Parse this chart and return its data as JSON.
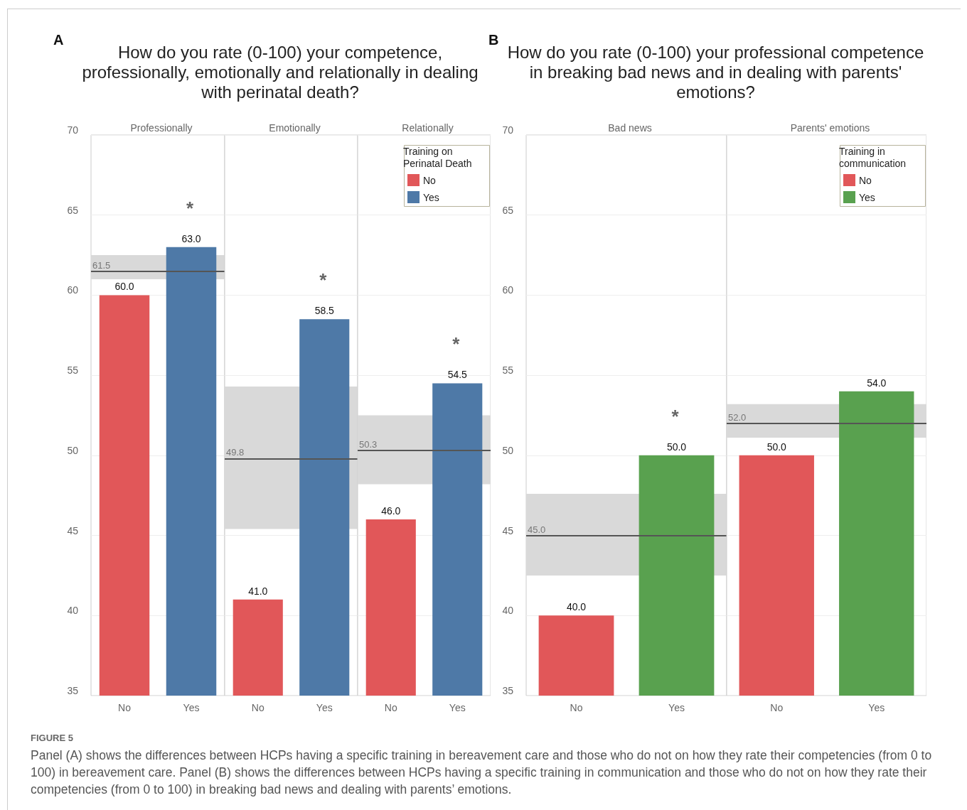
{
  "chart_data": [
    {
      "type": "bar",
      "title": "How do you rate (0-100) your competence, professionally, emotionally and relationally in dealing with perinatal death?",
      "subtitle": "Professionally",
      "categories": [
        "No",
        "Yes"
      ],
      "series": [
        {
          "color": "#e15759",
          "values": [
            60.0,
            null
          ],
          "value_labels": [
            "60.0",
            null
          ]
        },
        {
          "color": "#4e79a7",
          "values": [
            null,
            63.0
          ],
          "value_labels": [
            null,
            "63.0"
          ]
        }
      ],
      "ylim": [
        35,
        70
      ],
      "yticks": [
        35,
        40,
        45,
        50,
        55,
        60,
        65,
        70
      ],
      "grid": "y",
      "ref_lines": [
        {
          "axis": "y",
          "value": 61.5,
          "label": "61.5",
          "color": "#555555"
        }
      ],
      "bands": [
        {
          "axis": "y",
          "from": 61.0,
          "to": 62.5,
          "color": "#d9d9d9"
        }
      ],
      "annotations": [
        "A",
        "*"
      ]
    },
    {
      "type": "bar",
      "subtitle": "Emotionally",
      "categories": [
        "No",
        "Yes"
      ],
      "series": [
        {
          "color": "#e15759",
          "values": [
            41.0,
            null
          ],
          "value_labels": [
            "41.0",
            null
          ]
        },
        {
          "color": "#4e79a7",
          "values": [
            null,
            58.5
          ],
          "value_labels": [
            null,
            "58.5"
          ]
        }
      ],
      "ylim": [
        35,
        70
      ],
      "yticks": [
        35,
        40,
        45,
        50,
        55,
        60,
        65,
        70
      ],
      "grid": "y",
      "tick_labels": "x",
      "ref_lines": [
        {
          "axis": "y",
          "value": 49.8,
          "label": "49.8",
          "color": "#555555"
        }
      ],
      "bands": [
        {
          "axis": "y",
          "from": 45.4,
          "to": 54.3,
          "color": "#d9d9d9"
        }
      ],
      "annotations": [
        "*"
      ]
    },
    {
      "type": "bar",
      "subtitle": "Relationally",
      "categories": [
        "No",
        "Yes"
      ],
      "series": [
        {
          "name": "No",
          "color": "#e15759",
          "values": [
            46.0,
            null
          ],
          "value_labels": [
            "46.0",
            null
          ]
        },
        {
          "name": "Yes",
          "color": "#4e79a7",
          "values": [
            null,
            54.5
          ],
          "value_labels": [
            null,
            "54.5"
          ]
        }
      ],
      "ylim": [
        35,
        70
      ],
      "yticks": [
        35,
        40,
        45,
        50,
        55,
        60,
        65,
        70
      ],
      "grid": "y",
      "tick_labels": "x",
      "legend": "top right",
      "legend_title": "Training on Perinatal Death",
      "ref_lines": [
        {
          "axis": "y",
          "value": 50.3,
          "label": "50.3",
          "color": "#555555"
        }
      ],
      "bands": [
        {
          "axis": "y",
          "from": 48.2,
          "to": 52.5,
          "color": "#d9d9d9"
        }
      ],
      "annotations": [
        "*"
      ]
    },
    {
      "type": "bar",
      "title": "How do you rate (0-100) your professional competence in breaking bad news and in dealing with parents' emotions?",
      "subtitle": "Bad news",
      "categories": [
        "No",
        "Yes"
      ],
      "series": [
        {
          "color": "#e15759",
          "values": [
            40.0,
            null
          ],
          "value_labels": [
            "40.0",
            null
          ]
        },
        {
          "color": "#59a14f",
          "values": [
            null,
            50.0
          ],
          "value_labels": [
            null,
            "50.0"
          ]
        }
      ],
      "ylim": [
        35,
        70
      ],
      "yticks": [
        35,
        40,
        45,
        50,
        55,
        60,
        65,
        70
      ],
      "grid": "y",
      "ref_lines": [
        {
          "axis": "y",
          "value": 45.0,
          "label": "45.0",
          "color": "#555555"
        }
      ],
      "bands": [
        {
          "axis": "y",
          "from": 42.5,
          "to": 47.6,
          "color": "#d9d9d9"
        }
      ],
      "annotations": [
        "B",
        "*"
      ]
    },
    {
      "type": "bar",
      "subtitle": "Parents' emotions",
      "categories": [
        "No",
        "Yes"
      ],
      "series": [
        {
          "name": "No",
          "color": "#e15759",
          "values": [
            50.0,
            null
          ],
          "value_labels": [
            "50.0",
            null
          ]
        },
        {
          "name": "Yes",
          "color": "#59a14f",
          "values": [
            null,
            54.0
          ],
          "value_labels": [
            null,
            "54.0"
          ]
        }
      ],
      "ylim": [
        35,
        70
      ],
      "yticks": [
        35,
        40,
        45,
        50,
        55,
        60,
        65,
        70
      ],
      "grid": "y",
      "tick_labels": "x",
      "legend": "top right",
      "legend_title": "Training in communication",
      "ref_lines": [
        {
          "axis": "y",
          "value": 52.0,
          "label": "52.0",
          "color": "#555555"
        }
      ],
      "bands": [
        {
          "axis": "y",
          "from": 51.1,
          "to": 53.2,
          "color": "#d9d9d9"
        }
      ],
      "annotations": [
        "FIGURE 5",
        "Panel (A) shows the differences between HCPs having a specific training in bereavement care and those who do not on how they rate their competencies (from 0 to 100) in bereavement care. Panel (B) shows the differences between HCPs having a specific training in communication and those who do not on how they rate their competencies (from 0 to 100) in breaking bad news and dealing with parents’ emotions."
      ]
    }
  ]
}
